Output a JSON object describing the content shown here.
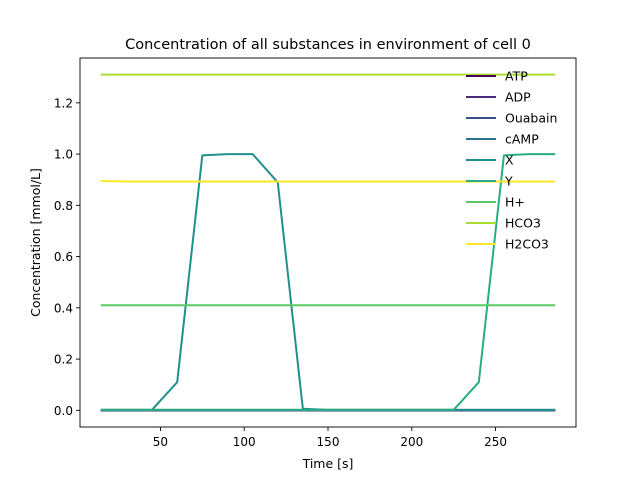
{
  "chart_data": {
    "type": "line",
    "title": "Concentration of all substances in environment of cell 0",
    "xlabel": "Time [s]",
    "ylabel": "Concentration [mmol/L]",
    "xlim": [
      2,
      298
    ],
    "ylim": [
      -0.065,
      1.375
    ],
    "xticks": [
      50,
      100,
      150,
      200,
      250
    ],
    "yticks": [
      0.0,
      0.2,
      0.4,
      0.6,
      0.8,
      1.0,
      1.2
    ],
    "ytick_labels": [
      "0.0",
      "0.2",
      "0.4",
      "0.6",
      "0.8",
      "1.0",
      "1.2"
    ],
    "grid": false,
    "legend_position": "upper right",
    "x": [
      15,
      30,
      45,
      60,
      75,
      90,
      105,
      120,
      135,
      150,
      165,
      180,
      195,
      210,
      225,
      240,
      255,
      270,
      285
    ],
    "series": [
      {
        "name": "ATP",
        "color": "#440154",
        "values": [
          0,
          0,
          0,
          0,
          0,
          0,
          0,
          0,
          0,
          0,
          0,
          0,
          0,
          0,
          0,
          0,
          0,
          0,
          0
        ]
      },
      {
        "name": "ADP",
        "color": "#472c7a",
        "values": [
          0,
          0,
          0,
          0,
          0,
          0,
          0,
          0,
          0,
          0,
          0,
          0,
          0,
          0,
          0,
          0,
          0,
          0,
          0
        ]
      },
      {
        "name": "Ouabain",
        "color": "#3b518b",
        "values": [
          0,
          0,
          0,
          0,
          0,
          0,
          0,
          0,
          0,
          0,
          0,
          0,
          0,
          0,
          0,
          0,
          0,
          0,
          0
        ]
      },
      {
        "name": "cAMP",
        "color": "#2c718e",
        "values": [
          0.002,
          0.002,
          0.002,
          0.002,
          0.002,
          0.002,
          0.002,
          0.002,
          0.002,
          0.002,
          0.002,
          0.002,
          0.002,
          0.002,
          0.002,
          0.002,
          0.002,
          0.002,
          0.002
        ]
      },
      {
        "name": "X",
        "color": "#21908d",
        "values": [
          0.002,
          0.002,
          0.002,
          0.11,
          0.995,
          1.0,
          1.0,
          0.89,
          0.006,
          0.002,
          0.002,
          0.002,
          0.002,
          0.002,
          0.002,
          0.002,
          0.002,
          0.002,
          0.002
        ]
      },
      {
        "name": "Y",
        "color": "#27ad81",
        "values": [
          0.002,
          0.002,
          0.002,
          0.002,
          0.002,
          0.002,
          0.002,
          0.002,
          0.002,
          0.002,
          0.002,
          0.002,
          0.002,
          0.002,
          0.002,
          0.11,
          0.995,
          1.0,
          1.0
        ]
      },
      {
        "name": "H+",
        "color": "#5cc863",
        "values": [
          0.41,
          0.41,
          0.41,
          0.41,
          0.41,
          0.41,
          0.41,
          0.41,
          0.41,
          0.41,
          0.41,
          0.41,
          0.41,
          0.41,
          0.41,
          0.41,
          0.41,
          0.41,
          0.41
        ]
      },
      {
        "name": "HCO3",
        "color": "#aadc32",
        "values": [
          1.31,
          1.31,
          1.31,
          1.31,
          1.31,
          1.31,
          1.31,
          1.31,
          1.31,
          1.31,
          1.31,
          1.31,
          1.31,
          1.31,
          1.31,
          1.31,
          1.31,
          1.31,
          1.31
        ]
      },
      {
        "name": "H2CO3",
        "color": "#fde725",
        "values": [
          0.895,
          0.893,
          0.893,
          0.893,
          0.893,
          0.893,
          0.893,
          0.893,
          0.893,
          0.893,
          0.893,
          0.893,
          0.893,
          0.893,
          0.893,
          0.893,
          0.893,
          0.893,
          0.893
        ]
      }
    ]
  }
}
